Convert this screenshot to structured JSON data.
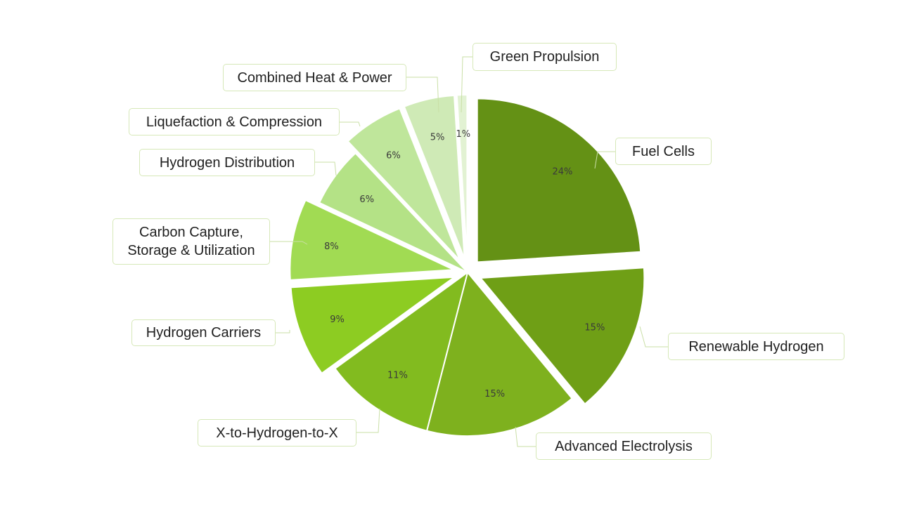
{
  "chart_data": {
    "type": "pie",
    "title": "",
    "slices": [
      {
        "label": "Fuel Cells",
        "value": 24,
        "pct_label": "24%",
        "color": "#649115",
        "exploded": true
      },
      {
        "label": "Renewable Hydrogen",
        "value": 15,
        "pct_label": "15%",
        "color": "#6f9f16",
        "exploded": true
      },
      {
        "label": "Advanced Electrolysis",
        "value": 15,
        "pct_label": "15%",
        "color": "#7eb11e",
        "exploded": false
      },
      {
        "label": "X-to-Hydrogen-to-X",
        "value": 11,
        "pct_label": "11%",
        "color": "#82bb1f",
        "exploded": false
      },
      {
        "label": "Hydrogen Carriers",
        "value": 9,
        "pct_label": "9%",
        "color": "#8dcc22",
        "exploded": true
      },
      {
        "label": "Carbon Capture,\nStorage & Utilization",
        "value": 8,
        "pct_label": "8%",
        "color": "#a1db53",
        "exploded": true
      },
      {
        "label": "Hydrogen Distribution",
        "value": 6,
        "pct_label": "6%",
        "color": "#b4e286",
        "exploded": false
      },
      {
        "label": "Liquefaction & Compression",
        "value": 6,
        "pct_label": "6%",
        "color": "#bfe69b",
        "exploded": true
      },
      {
        "label": "Combined Heat & Power",
        "value": 5,
        "pct_label": "5%",
        "color": "#cfeab6",
        "exploded": true
      },
      {
        "label": "Green Propulsion",
        "value": 1,
        "pct_label": "1%",
        "color": "#e2f2d3",
        "exploded": true
      }
    ],
    "legend": "none",
    "colors": {
      "label_border": "#d6e8b8",
      "leader_line": "#c9dfa6",
      "pct_text": "#3a3a3a"
    }
  }
}
